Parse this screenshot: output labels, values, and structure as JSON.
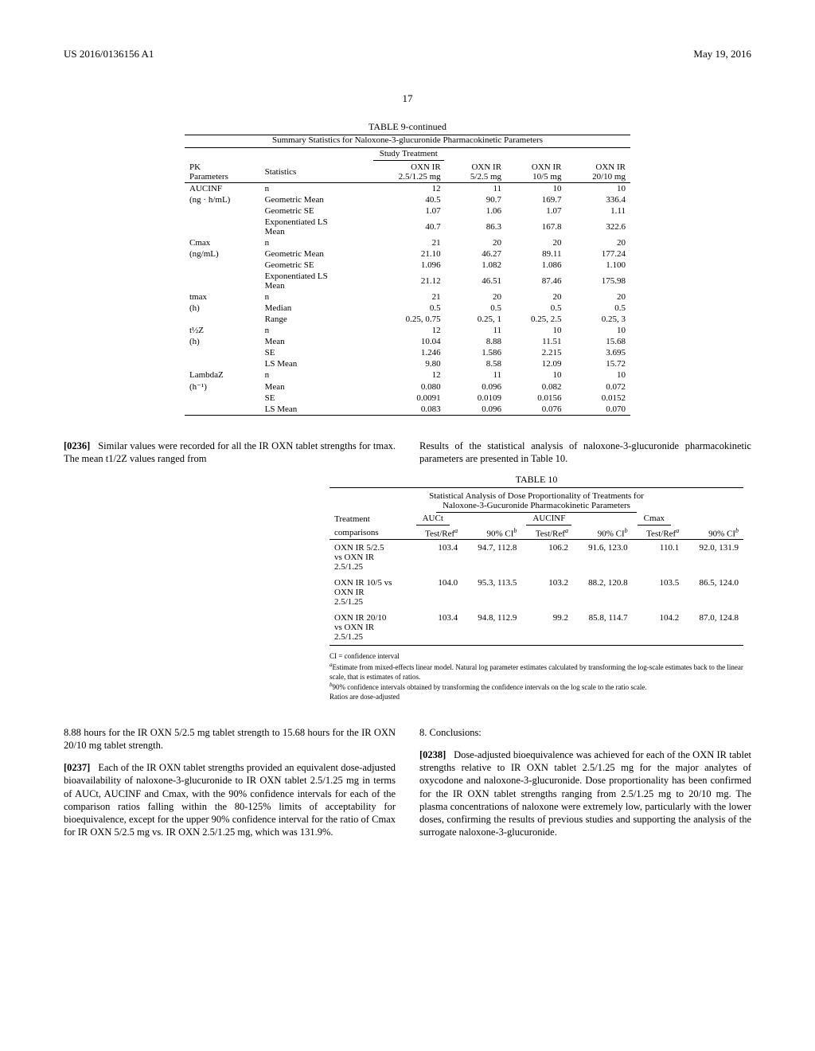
{
  "header": {
    "left": "US 2016/0136156 A1",
    "right": "May 19, 2016",
    "page": "17"
  },
  "table9": {
    "title": "TABLE 9-continued",
    "subtitle": "Summary Statistics for Naloxone-3-glucuronide Pharmacokinetic Parameters",
    "study_label": "Study Treatment",
    "col_pk": "PK Parameters",
    "col_stat": "Statistics",
    "treatments": [
      {
        "a": "OXN IR",
        "b": "2.5/1.25 mg"
      },
      {
        "a": "OXN IR",
        "b": "5/2.5 mg"
      },
      {
        "a": "OXN IR",
        "b": "10/5 mg"
      },
      {
        "a": "OXN IR",
        "b": "20/10 mg"
      }
    ],
    "groups": [
      {
        "param_a": "AUCINF",
        "param_b": "(ng · h/mL)",
        "rows": [
          {
            "stat": "n",
            "v": [
              "12",
              "11",
              "10",
              "10"
            ]
          },
          {
            "stat": "Geometric Mean",
            "v": [
              "40.5",
              "90.7",
              "169.7",
              "336.4"
            ]
          },
          {
            "stat": "Geometric SE",
            "v": [
              "1.07",
              "1.06",
              "1.07",
              "1.11"
            ]
          },
          {
            "stat": "Exponentiated LS Mean",
            "v": [
              "40.7",
              "86.3",
              "167.8",
              "322.6"
            ]
          }
        ]
      },
      {
        "param_a": "Cmax",
        "param_b": "(ng/mL)",
        "rows": [
          {
            "stat": "n",
            "v": [
              "21",
              "20",
              "20",
              "20"
            ]
          },
          {
            "stat": "Geometric Mean",
            "v": [
              "21.10",
              "46.27",
              "89.11",
              "177.24"
            ]
          },
          {
            "stat": "Geometric SE",
            "v": [
              "1.096",
              "1.082",
              "1.086",
              "1.100"
            ]
          },
          {
            "stat": "Exponentiated LS Mean",
            "v": [
              "21.12",
              "46.51",
              "87.46",
              "175.98"
            ]
          }
        ]
      },
      {
        "param_a": "tmax",
        "param_b": "(h)",
        "rows": [
          {
            "stat": "n",
            "v": [
              "21",
              "20",
              "20",
              "20"
            ]
          },
          {
            "stat": "Median",
            "v": [
              "0.5",
              "0.5",
              "0.5",
              "0.5"
            ]
          },
          {
            "stat": "Range",
            "v": [
              "0.25, 0.75",
              "0.25, 1",
              "0.25, 2.5",
              "0.25, 3"
            ]
          }
        ]
      },
      {
        "param_a": "t½Z",
        "param_b": "(h)",
        "rows": [
          {
            "stat": "n",
            "v": [
              "12",
              "11",
              "10",
              "10"
            ]
          },
          {
            "stat": "Mean",
            "v": [
              "10.04",
              "8.88",
              "11.51",
              "15.68"
            ]
          },
          {
            "stat": "SE",
            "v": [
              "1.246",
              "1.586",
              "2.215",
              "3.695"
            ]
          },
          {
            "stat": "LS Mean",
            "v": [
              "9.80",
              "8.58",
              "12.09",
              "15.72"
            ]
          }
        ]
      },
      {
        "param_a": "LambdaZ",
        "param_b": "(h⁻¹)",
        "rows": [
          {
            "stat": "n",
            "v": [
              "12",
              "11",
              "10",
              "10"
            ]
          },
          {
            "stat": "Mean",
            "v": [
              "0.080",
              "0.096",
              "0.082",
              "0.072"
            ]
          },
          {
            "stat": "SE",
            "v": [
              "0.0091",
              "0.0109",
              "0.0156",
              "0.0152"
            ]
          },
          {
            "stat": "LS Mean",
            "v": [
              "0.083",
              "0.096",
              "0.076",
              "0.070"
            ]
          }
        ]
      }
    ]
  },
  "mid": {
    "left_num": "[0236]",
    "left_text": "Similar values were recorded for all the IR OXN tablet strengths for tmax. The mean t1/2Z values ranged from",
    "right_text": "Results of the statistical analysis of naloxone-3-glucuronide pharmacokinetic parameters are presented in Table 10."
  },
  "table10": {
    "title": "TABLE 10",
    "subtitle1": "Statistical Analysis of Dose Proportionality of Treatments for",
    "subtitle2": "Naloxone-3-Gucuronide Pharmacokinetic Parameters",
    "hdr_treat": "Treatment",
    "hdr_comp": "comparisons",
    "cols": [
      "AUCt",
      "AUCINF",
      "Cmax"
    ],
    "sub_tr": "Test/Ref",
    "sub_tra": "a",
    "sub_ci": "90% CI",
    "sub_cib": "b",
    "rows": [
      {
        "t": [
          "OXN IR 5/2.5",
          "vs OXN IR",
          "2.5/1.25"
        ],
        "v": [
          "103.4",
          "94.7, 112.8",
          "106.2",
          "91.6, 123.0",
          "110.1",
          "92.0, 131.9"
        ]
      },
      {
        "t": [
          "OXN IR 10/5 vs",
          "OXN IR",
          "2.5/1.25"
        ],
        "v": [
          "104.0",
          "95.3, 113.5",
          "103.2",
          "88.2, 120.8",
          "103.5",
          "86.5, 124.0"
        ]
      },
      {
        "t": [
          "OXN IR 20/10",
          "vs OXN IR",
          "2.5/1.25"
        ],
        "v": [
          "103.4",
          "94.8, 112.9",
          "99.2",
          "85.8, 114.7",
          "104.2",
          "87.0, 124.8"
        ]
      }
    ],
    "fn_ci": "CI = confidence interval",
    "fn_a": "Estimate from mixed-effects linear model. Natural log parameter estimates calculated by transforming the log-scale estimates back to the linear scale, that is estimates of ratios.",
    "fn_b": "90% confidence intervals obtained by transforming the confidence intervals on the log scale to the ratio scale.",
    "fn_r": "Ratios are dose-adjusted"
  },
  "bottom": {
    "left1": "8.88 hours for the IR OXN 5/2.5 mg tablet strength to 15.68 hours for the IR OXN 20/10 mg tablet strength.",
    "left2_num": "[0237]",
    "left2": "Each of the IR OXN tablet strengths provided an equivalent dose-adjusted bioavailability of naloxone-3-glucuronide to IR OXN tablet 2.5/1.25 mg in terms of AUCt, AUCINF and Cmax, with the 90% confidence intervals for each of the comparison ratios falling within the 80-125% limits of acceptability for bioequivalence, except for the upper 90% confidence interval for the ratio of Cmax for IR OXN 5/2.5 mg vs. IR OXN 2.5/1.25 mg, which was 131.9%.",
    "right_hdr": "8. Conclusions:",
    "right_num": "[0238]",
    "right": "Dose-adjusted bioequivalence was achieved for each of the OXN IR tablet strengths relative to IR OXN tablet 2.5/1.25 mg for the major analytes of oxycodone and naloxone-3-glucuronide. Dose proportionality has been confirmed for the IR OXN tablet strengths ranging from 2.5/1.25 mg to 20/10 mg. The plasma concentrations of naloxone were extremely low, particularly with the lower doses, confirming the results of previous studies and supporting the analysis of the surrogate naloxone-3-glucuronide."
  }
}
